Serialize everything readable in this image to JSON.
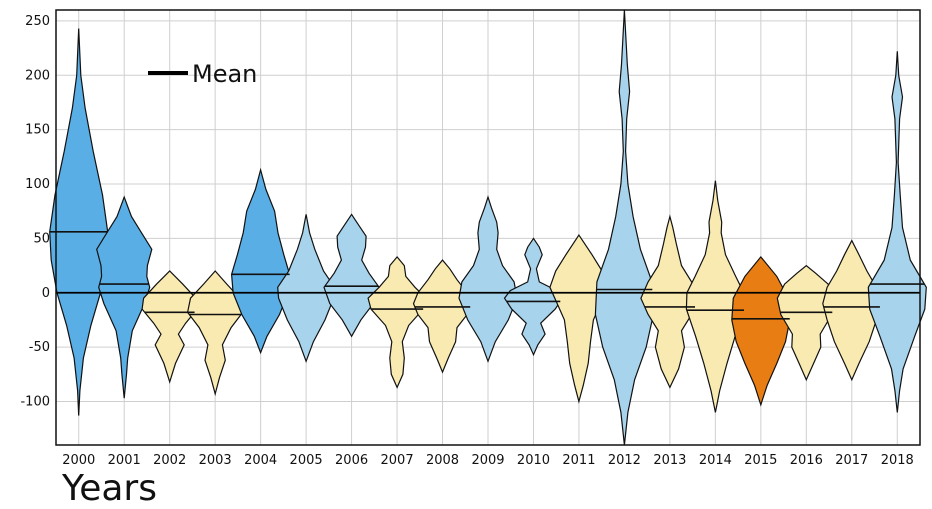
{
  "chart_data": {
    "type": "violin",
    "xlabel": "Years",
    "ylabel": "",
    "ylim": [
      -140,
      260
    ],
    "yticks": [
      -100,
      -50,
      0,
      50,
      100,
      150,
      200,
      250
    ],
    "grid": true,
    "zero_line": true,
    "legend": {
      "placement": "top-left",
      "entries": [
        {
          "label": "Mean",
          "symbol": "line"
        }
      ]
    },
    "colors": {
      "blue": "#5aaee6",
      "lightblue": "#a8d3ec",
      "lightyellow": "#f8eab0",
      "orange": "#e87e13"
    },
    "series": [
      {
        "year": "2000",
        "mean": 56,
        "range": [
          -113,
          243
        ],
        "color": "blue",
        "profile": [
          [
            -113,
            0
          ],
          [
            -90,
            0.04
          ],
          [
            -60,
            0.16
          ],
          [
            -30,
            0.42
          ],
          [
            0,
            0.75
          ],
          [
            30,
            0.95
          ],
          [
            56,
            1.0
          ],
          [
            90,
            0.82
          ],
          [
            130,
            0.5
          ],
          [
            170,
            0.22
          ],
          [
            200,
            0.07
          ],
          [
            243,
            0
          ]
        ]
      },
      {
        "year": "2001",
        "mean": 8,
        "range": [
          -97,
          88
        ],
        "color": "blue",
        "profile": [
          [
            -97,
            0
          ],
          [
            -75,
            0.08
          ],
          [
            -60,
            0.12
          ],
          [
            -35,
            0.28
          ],
          [
            -10,
            0.7
          ],
          [
            5,
            0.88
          ],
          [
            15,
            0.78
          ],
          [
            25,
            0.8
          ],
          [
            40,
            0.95
          ],
          [
            55,
            0.6
          ],
          [
            70,
            0.25
          ],
          [
            88,
            0
          ]
        ]
      },
      {
        "year": "2002",
        "mean": -18,
        "range": [
          -82,
          20
        ],
        "color": "lightyellow",
        "profile": [
          [
            -82,
            0
          ],
          [
            -65,
            0.2
          ],
          [
            -48,
            0.5
          ],
          [
            -38,
            0.3
          ],
          [
            -28,
            0.55
          ],
          [
            -15,
            0.95
          ],
          [
            -5,
            0.9
          ],
          [
            8,
            0.45
          ],
          [
            20,
            0
          ]
        ]
      },
      {
        "year": "2003",
        "mean": -20,
        "range": [
          -93,
          20
        ],
        "color": "lightyellow",
        "profile": [
          [
            -93,
            0
          ],
          [
            -78,
            0.15
          ],
          [
            -62,
            0.35
          ],
          [
            -48,
            0.25
          ],
          [
            -32,
            0.55
          ],
          [
            -18,
            0.95
          ],
          [
            -5,
            0.85
          ],
          [
            8,
            0.4
          ],
          [
            20,
            0
          ]
        ]
      },
      {
        "year": "2004",
        "mean": 17,
        "range": [
          -55,
          113
        ],
        "color": "blue",
        "profile": [
          [
            -55,
            0
          ],
          [
            -40,
            0.22
          ],
          [
            -20,
            0.65
          ],
          [
            0,
            0.95
          ],
          [
            17,
            1.0
          ],
          [
            35,
            0.8
          ],
          [
            55,
            0.6
          ],
          [
            75,
            0.48
          ],
          [
            95,
            0.18
          ],
          [
            113,
            0
          ]
        ]
      },
      {
        "year": "2005",
        "mean": 0,
        "range": [
          -63,
          72
        ],
        "color": "lightblue",
        "profile": [
          [
            -63,
            0
          ],
          [
            -45,
            0.25
          ],
          [
            -25,
            0.65
          ],
          [
            -5,
            0.95
          ],
          [
            5,
            0.98
          ],
          [
            20,
            0.6
          ],
          [
            40,
            0.3
          ],
          [
            55,
            0.12
          ],
          [
            72,
            0
          ]
        ]
      },
      {
        "year": "2006",
        "mean": 6,
        "range": [
          -40,
          72
        ],
        "color": "lightblue",
        "profile": [
          [
            -40,
            0
          ],
          [
            -25,
            0.32
          ],
          [
            -10,
            0.75
          ],
          [
            5,
            0.95
          ],
          [
            18,
            0.6
          ],
          [
            30,
            0.35
          ],
          [
            42,
            0.48
          ],
          [
            52,
            0.5
          ],
          [
            62,
            0.25
          ],
          [
            72,
            0
          ]
        ]
      },
      {
        "year": "2007",
        "mean": -15,
        "range": [
          -87,
          33
        ],
        "color": "lightyellow",
        "profile": [
          [
            -87,
            0
          ],
          [
            -75,
            0.2
          ],
          [
            -60,
            0.25
          ],
          [
            -45,
            0.18
          ],
          [
            -30,
            0.4
          ],
          [
            -15,
            0.9
          ],
          [
            -5,
            1.0
          ],
          [
            5,
            0.62
          ],
          [
            15,
            0.3
          ],
          [
            25,
            0.25
          ],
          [
            33,
            0
          ]
        ]
      },
      {
        "year": "2008",
        "mean": -13,
        "range": [
          -73,
          30
        ],
        "color": "lightyellow",
        "profile": [
          [
            -73,
            0
          ],
          [
            -60,
            0.2
          ],
          [
            -45,
            0.45
          ],
          [
            -32,
            0.5
          ],
          [
            -20,
            0.85
          ],
          [
            -10,
            1.0
          ],
          [
            0,
            0.85
          ],
          [
            12,
            0.5
          ],
          [
            22,
            0.25
          ],
          [
            30,
            0
          ]
        ]
      },
      {
        "year": "2009",
        "mean": 0,
        "range": [
          -63,
          88
        ],
        "color": "lightblue",
        "profile": [
          [
            -63,
            0
          ],
          [
            -45,
            0.25
          ],
          [
            -25,
            0.7
          ],
          [
            -5,
            1.0
          ],
          [
            10,
            0.9
          ],
          [
            25,
            0.5
          ],
          [
            40,
            0.3
          ],
          [
            55,
            0.35
          ],
          [
            65,
            0.3
          ],
          [
            78,
            0.12
          ],
          [
            88,
            0
          ]
        ]
      },
      {
        "year": "2010",
        "mean": -8,
        "range": [
          -57,
          50
        ],
        "color": "lightblue",
        "profile": [
          [
            -57,
            0
          ],
          [
            -48,
            0.15
          ],
          [
            -38,
            0.4
          ],
          [
            -28,
            0.25
          ],
          [
            -15,
            0.75
          ],
          [
            -5,
            1.0
          ],
          [
            2,
            0.8
          ],
          [
            10,
            0.2
          ],
          [
            22,
            0.1
          ],
          [
            35,
            0.3
          ],
          [
            42,
            0.2
          ],
          [
            50,
            0
          ]
        ]
      },
      {
        "year": "2011",
        "mean": 0,
        "range": [
          -100,
          53
        ],
        "color": "lightyellow",
        "profile": [
          [
            -100,
            0
          ],
          [
            -85,
            0.15
          ],
          [
            -65,
            0.32
          ],
          [
            -45,
            0.4
          ],
          [
            -25,
            0.5
          ],
          [
            -10,
            0.75
          ],
          [
            5,
            1.0
          ],
          [
            20,
            0.8
          ],
          [
            35,
            0.45
          ],
          [
            53,
            0
          ]
        ]
      },
      {
        "year": "2012",
        "mean": 3,
        "range": [
          -140,
          260
        ],
        "color": "lightblue",
        "profile": [
          [
            -140,
            0
          ],
          [
            -110,
            0.12
          ],
          [
            -80,
            0.35
          ],
          [
            -50,
            0.75
          ],
          [
            -20,
            1.0
          ],
          [
            10,
            0.95
          ],
          [
            40,
            0.55
          ],
          [
            70,
            0.3
          ],
          [
            100,
            0.12
          ],
          [
            130,
            0.04
          ],
          [
            160,
            0.08
          ],
          [
            185,
            0.18
          ],
          [
            210,
            0.1
          ],
          [
            260,
            0
          ]
        ]
      },
      {
        "year": "2013",
        "mean": -13,
        "range": [
          -87,
          70
        ],
        "color": "lightyellow",
        "profile": [
          [
            -87,
            0
          ],
          [
            -70,
            0.3
          ],
          [
            -50,
            0.5
          ],
          [
            -35,
            0.4
          ],
          [
            -20,
            0.75
          ],
          [
            -5,
            1.0
          ],
          [
            10,
            0.75
          ],
          [
            25,
            0.4
          ],
          [
            45,
            0.22
          ],
          [
            60,
            0.1
          ],
          [
            70,
            0
          ]
        ]
      },
      {
        "year": "2014",
        "mean": -16,
        "range": [
          -110,
          103
        ],
        "color": "lightyellow",
        "profile": [
          [
            -110,
            0
          ],
          [
            -90,
            0.15
          ],
          [
            -65,
            0.4
          ],
          [
            -40,
            0.68
          ],
          [
            -15,
            1.0
          ],
          [
            0,
            0.98
          ],
          [
            15,
            0.7
          ],
          [
            35,
            0.35
          ],
          [
            55,
            0.2
          ],
          [
            65,
            0.22
          ],
          [
            85,
            0.08
          ],
          [
            103,
            0
          ]
        ]
      },
      {
        "year": "2015",
        "mean": -24,
        "range": [
          -103,
          33
        ],
        "color": "orange",
        "profile": [
          [
            -103,
            0
          ],
          [
            -85,
            0.22
          ],
          [
            -65,
            0.55
          ],
          [
            -45,
            0.85
          ],
          [
            -25,
            1.0
          ],
          [
            -5,
            0.95
          ],
          [
            15,
            0.55
          ],
          [
            33,
            0
          ]
        ]
      },
      {
        "year": "2016",
        "mean": -18,
        "range": [
          -80,
          25
        ],
        "color": "lightyellow",
        "profile": [
          [
            -80,
            0
          ],
          [
            -65,
            0.25
          ],
          [
            -50,
            0.5
          ],
          [
            -38,
            0.48
          ],
          [
            -20,
            0.88
          ],
          [
            -5,
            1.0
          ],
          [
            8,
            0.75
          ],
          [
            18,
            0.32
          ],
          [
            25,
            0
          ]
        ]
      },
      {
        "year": "2017",
        "mean": -13,
        "range": [
          -80,
          48
        ],
        "color": "lightyellow",
        "profile": [
          [
            -80,
            0
          ],
          [
            -65,
            0.25
          ],
          [
            -45,
            0.6
          ],
          [
            -25,
            0.85
          ],
          [
            -10,
            1.0
          ],
          [
            5,
            0.85
          ],
          [
            20,
            0.52
          ],
          [
            35,
            0.25
          ],
          [
            48,
            0
          ]
        ]
      },
      {
        "year": "2018",
        "mean": 8,
        "range": [
          -110,
          222
        ],
        "color": "lightblue",
        "profile": [
          [
            -110,
            0
          ],
          [
            -90,
            0.08
          ],
          [
            -70,
            0.2
          ],
          [
            -40,
            0.6
          ],
          [
            -15,
            0.95
          ],
          [
            5,
            1.0
          ],
          [
            30,
            0.45
          ],
          [
            60,
            0.18
          ],
          [
            90,
            0.1
          ],
          [
            120,
            0.03
          ],
          [
            160,
            0.08
          ],
          [
            180,
            0.18
          ],
          [
            200,
            0.05
          ],
          [
            222,
            0
          ]
        ]
      }
    ]
  }
}
